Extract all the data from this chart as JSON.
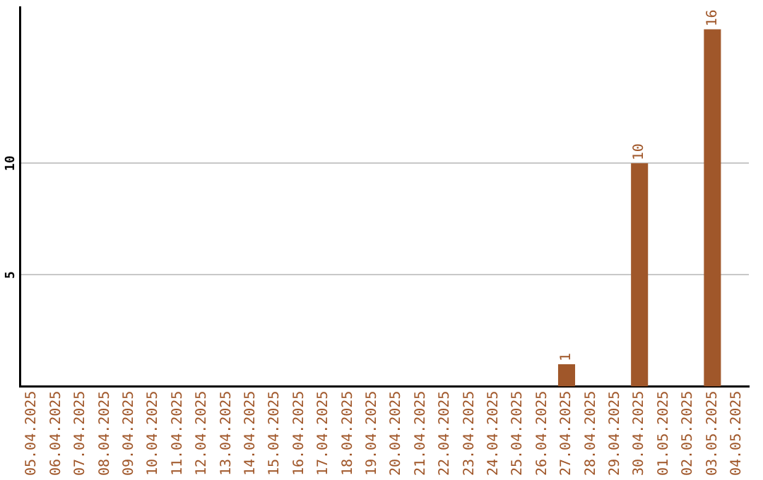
{
  "chart_data": {
    "type": "bar",
    "categories": [
      "05.04.2025",
      "06.04.2025",
      "07.04.2025",
      "08.04.2025",
      "09.04.2025",
      "10.04.2025",
      "11.04.2025",
      "12.04.2025",
      "13.04.2025",
      "14.04.2025",
      "15.04.2025",
      "16.04.2025",
      "17.04.2025",
      "18.04.2025",
      "19.04.2025",
      "20.04.2025",
      "21.04.2025",
      "22.04.2025",
      "23.04.2025",
      "24.04.2025",
      "25.04.2025",
      "26.04.2025",
      "27.04.2025",
      "28.04.2025",
      "29.04.2025",
      "30.04.2025",
      "01.05.2025",
      "02.05.2025",
      "03.05.2025",
      "04.05.2025"
    ],
    "values": [
      0,
      0,
      0,
      0,
      0,
      0,
      0,
      0,
      0,
      0,
      0,
      0,
      0,
      0,
      0,
      0,
      0,
      0,
      0,
      0,
      0,
      0,
      1,
      0,
      0,
      10,
      0,
      0,
      16,
      0
    ],
    "value_labels": [
      null,
      null,
      null,
      null,
      null,
      null,
      null,
      null,
      null,
      null,
      null,
      null,
      null,
      null,
      null,
      null,
      null,
      null,
      null,
      null,
      null,
      null,
      "1",
      null,
      null,
      "10",
      null,
      null,
      "16",
      null
    ],
    "color": "#a0572a",
    "ylim": [
      0,
      17
    ],
    "yticks": [
      5,
      10
    ],
    "grid": "y"
  }
}
